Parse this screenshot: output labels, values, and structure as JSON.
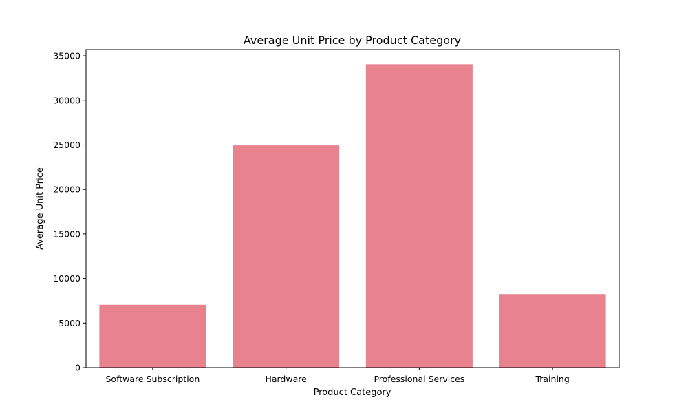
{
  "chart_data": {
    "type": "bar",
    "title": "Average Unit Price by Product Category",
    "xlabel": "Product Category",
    "ylabel": "Average Unit Price",
    "categories": [
      "Software Subscription",
      "Hardware",
      "Professional Services",
      "Training"
    ],
    "values": [
      7050,
      24950,
      34050,
      8250
    ],
    "ylim": [
      0,
      35700
    ],
    "yticks": [
      0,
      5000,
      10000,
      15000,
      20000,
      25000,
      30000,
      35000
    ],
    "bar_color": "#e8828f",
    "grid": false,
    "legend": "none"
  }
}
